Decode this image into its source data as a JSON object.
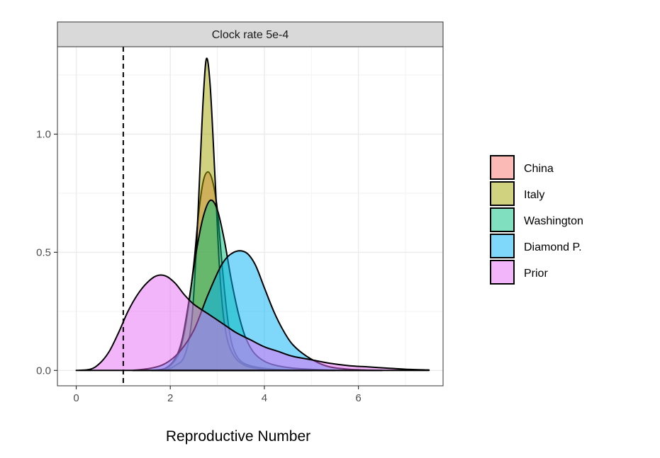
{
  "chart_data": {
    "type": "area",
    "subtype": "density",
    "panel_title": "Clock rate 5e-4",
    "xlabel": "Reproductive Number",
    "ylabel": "",
    "xlim": [
      -0.4,
      7.8
    ],
    "ylim": [
      -0.065,
      1.37
    ],
    "x_ticks": [
      0,
      2,
      4,
      6
    ],
    "x_tick_labels": [
      "0",
      "2",
      "4",
      "6"
    ],
    "y_ticks": [
      0.0,
      0.5,
      1.0
    ],
    "y_tick_labels": [
      "0.0",
      "0.5",
      "1.0"
    ],
    "grid": true,
    "legend_position": "right",
    "reference_line": {
      "x": 1,
      "style": "dashed"
    },
    "series": [
      {
        "name": "China",
        "color": "#F8766D",
        "points": [
          [
            1.8,
            0
          ],
          [
            2.0,
            0.02
          ],
          [
            2.2,
            0.08
          ],
          [
            2.35,
            0.22
          ],
          [
            2.5,
            0.45
          ],
          [
            2.6,
            0.66
          ],
          [
            2.7,
            0.8
          ],
          [
            2.8,
            0.84
          ],
          [
            2.9,
            0.8
          ],
          [
            3.0,
            0.68
          ],
          [
            3.1,
            0.45
          ],
          [
            3.2,
            0.25
          ],
          [
            3.3,
            0.12
          ],
          [
            3.45,
            0.05
          ],
          [
            3.7,
            0.02
          ],
          [
            4.2,
            0.005
          ],
          [
            5.0,
            0
          ]
        ]
      },
      {
        "name": "Italy",
        "color": "#A3A500",
        "points": [
          [
            1.9,
            0
          ],
          [
            2.1,
            0.02
          ],
          [
            2.3,
            0.06
          ],
          [
            2.45,
            0.2
          ],
          [
            2.55,
            0.5
          ],
          [
            2.63,
            0.85
          ],
          [
            2.7,
            1.15
          ],
          [
            2.77,
            1.32
          ],
          [
            2.85,
            1.2
          ],
          [
            2.95,
            0.82
          ],
          [
            3.05,
            0.42
          ],
          [
            3.15,
            0.2
          ],
          [
            3.3,
            0.08
          ],
          [
            3.6,
            0.02
          ],
          [
            4.2,
            0
          ]
        ]
      },
      {
        "name": "Washington",
        "color": "#00BF7D",
        "points": [
          [
            1.6,
            0
          ],
          [
            1.9,
            0.01
          ],
          [
            2.1,
            0.05
          ],
          [
            2.25,
            0.13
          ],
          [
            2.4,
            0.3
          ],
          [
            2.55,
            0.5
          ],
          [
            2.7,
            0.65
          ],
          [
            2.85,
            0.72
          ],
          [
            3.0,
            0.68
          ],
          [
            3.15,
            0.55
          ],
          [
            3.3,
            0.38
          ],
          [
            3.45,
            0.24
          ],
          [
            3.6,
            0.14
          ],
          [
            3.8,
            0.07
          ],
          [
            4.1,
            0.03
          ],
          [
            4.6,
            0.01
          ],
          [
            5.5,
            0
          ]
        ]
      },
      {
        "name": "Diamond P.",
        "color": "#00B0F6",
        "points": [
          [
            1.2,
            0
          ],
          [
            1.6,
            0.01
          ],
          [
            1.9,
            0.03
          ],
          [
            2.2,
            0.08
          ],
          [
            2.5,
            0.17
          ],
          [
            2.8,
            0.32
          ],
          [
            3.1,
            0.45
          ],
          [
            3.35,
            0.5
          ],
          [
            3.6,
            0.5
          ],
          [
            3.8,
            0.45
          ],
          [
            4.0,
            0.35
          ],
          [
            4.2,
            0.25
          ],
          [
            4.4,
            0.17
          ],
          [
            4.6,
            0.11
          ],
          [
            4.9,
            0.06
          ],
          [
            5.3,
            0.02
          ],
          [
            5.8,
            0.005
          ],
          [
            6.5,
            0
          ]
        ]
      },
      {
        "name": "Prior",
        "color": "#E76BF3",
        "points": [
          [
            0,
            0
          ],
          [
            0.3,
            0.005
          ],
          [
            0.5,
            0.03
          ],
          [
            0.7,
            0.08
          ],
          [
            0.9,
            0.16
          ],
          [
            1.1,
            0.25
          ],
          [
            1.3,
            0.32
          ],
          [
            1.5,
            0.37
          ],
          [
            1.7,
            0.4
          ],
          [
            1.9,
            0.4
          ],
          [
            2.1,
            0.37
          ],
          [
            2.3,
            0.32
          ],
          [
            2.5,
            0.28
          ],
          [
            2.8,
            0.24
          ],
          [
            3.1,
            0.2
          ],
          [
            3.4,
            0.16
          ],
          [
            3.7,
            0.13
          ],
          [
            4.0,
            0.1
          ],
          [
            4.3,
            0.08
          ],
          [
            4.6,
            0.06
          ],
          [
            5.0,
            0.045
          ],
          [
            5.4,
            0.03
          ],
          [
            5.8,
            0.02
          ],
          [
            6.2,
            0.015
          ],
          [
            6.6,
            0.01
          ],
          [
            7.0,
            0.005
          ],
          [
            7.5,
            0.002
          ]
        ]
      }
    ]
  }
}
